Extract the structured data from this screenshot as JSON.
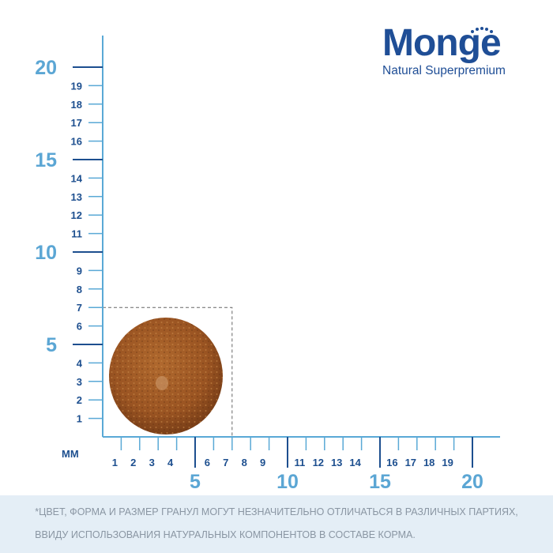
{
  "logo": {
    "brand": "Monge",
    "tagline": "Natural Superpremium"
  },
  "unit": "MM",
  "y_axis": {
    "minor_labels": [
      1,
      2,
      3,
      4,
      6,
      7,
      8,
      9,
      11,
      12,
      13,
      14,
      16,
      17,
      18,
      19
    ],
    "major_labels": [
      5,
      10,
      15,
      20
    ]
  },
  "x_axis": {
    "minor_labels": [
      1,
      2,
      3,
      4,
      6,
      7,
      8,
      9,
      11,
      12,
      13,
      14,
      16,
      17,
      18,
      19
    ],
    "major_labels": [
      5,
      10,
      15,
      20
    ]
  },
  "note": [
    "*ЦВЕТ, ФОРМА И РАЗМЕР ГРАНУЛ МОГУТ НЕЗНАЧИТЕЛЬНО ОТЛИЧАТЬСЯ В РАЗЛИЧНЫХ ПАРТИЯХ,",
    "ВВИДУ ИСПОЛЬЗОВАНИЯ НАТУРАЛЬНЫХ КОМПОНЕНТОВ В СОСТАВЕ КОРМА."
  ]
}
